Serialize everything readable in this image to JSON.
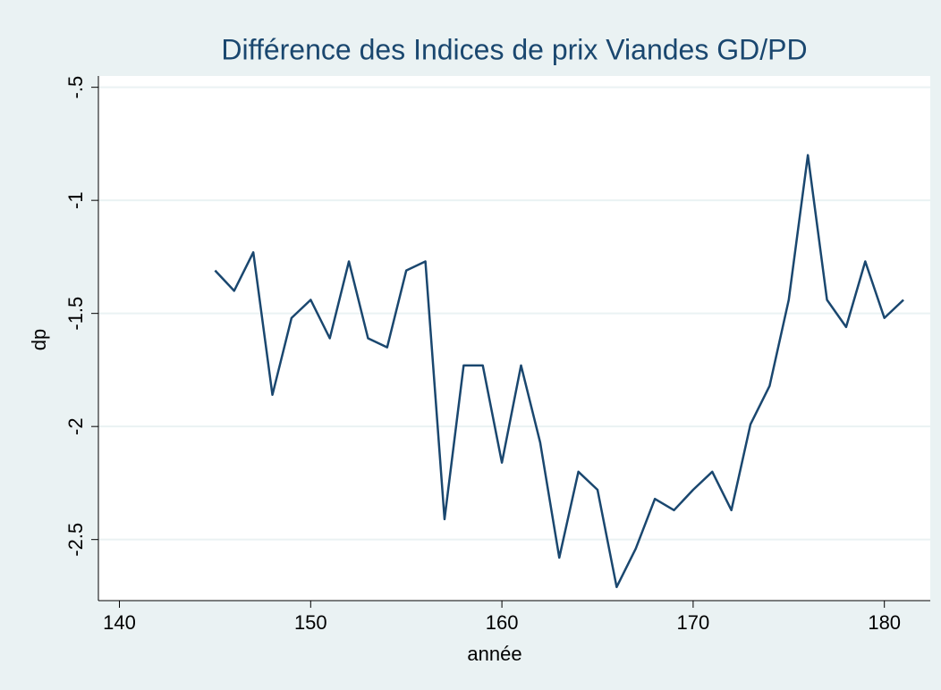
{
  "chart_data": {
    "type": "line",
    "title": "Différence des Indices de prix Viandes GD/PD",
    "x_label": "année",
    "y_label": "dp",
    "x": [
      145,
      146,
      147,
      148,
      149,
      150,
      151,
      152,
      153,
      154,
      155,
      156,
      157,
      158,
      159,
      160,
      161,
      162,
      163,
      164,
      165,
      166,
      167,
      168,
      169,
      170,
      171,
      172,
      173,
      174,
      175,
      176,
      177,
      178,
      179,
      180,
      181
    ],
    "series": [
      {
        "name": "dp",
        "color": "#1a476f",
        "values": [
          -1.31,
          -1.4,
          -1.23,
          -1.86,
          -1.52,
          -1.44,
          -1.61,
          -1.27,
          -1.61,
          -1.65,
          -1.31,
          -1.27,
          -2.41,
          -1.73,
          -1.73,
          -2.16,
          -1.73,
          -2.07,
          -2.58,
          -2.2,
          -2.28,
          -2.71,
          -2.54,
          -2.32,
          -2.37,
          -2.28,
          -2.2,
          -2.37,
          -1.99,
          -1.82,
          -1.44,
          -0.8,
          -1.44,
          -1.56,
          -1.27,
          -1.52,
          -1.44
        ]
      }
    ],
    "xlim": [
      138.9,
      182.4
    ],
    "xticks": [
      140,
      150,
      160,
      170,
      180
    ],
    "ylim": [
      -2.77,
      -0.45
    ],
    "yticks": [
      {
        "value": -0.5,
        "label": "-.5"
      },
      -1,
      -1.5,
      -2,
      -2.5
    ],
    "grid": true
  }
}
